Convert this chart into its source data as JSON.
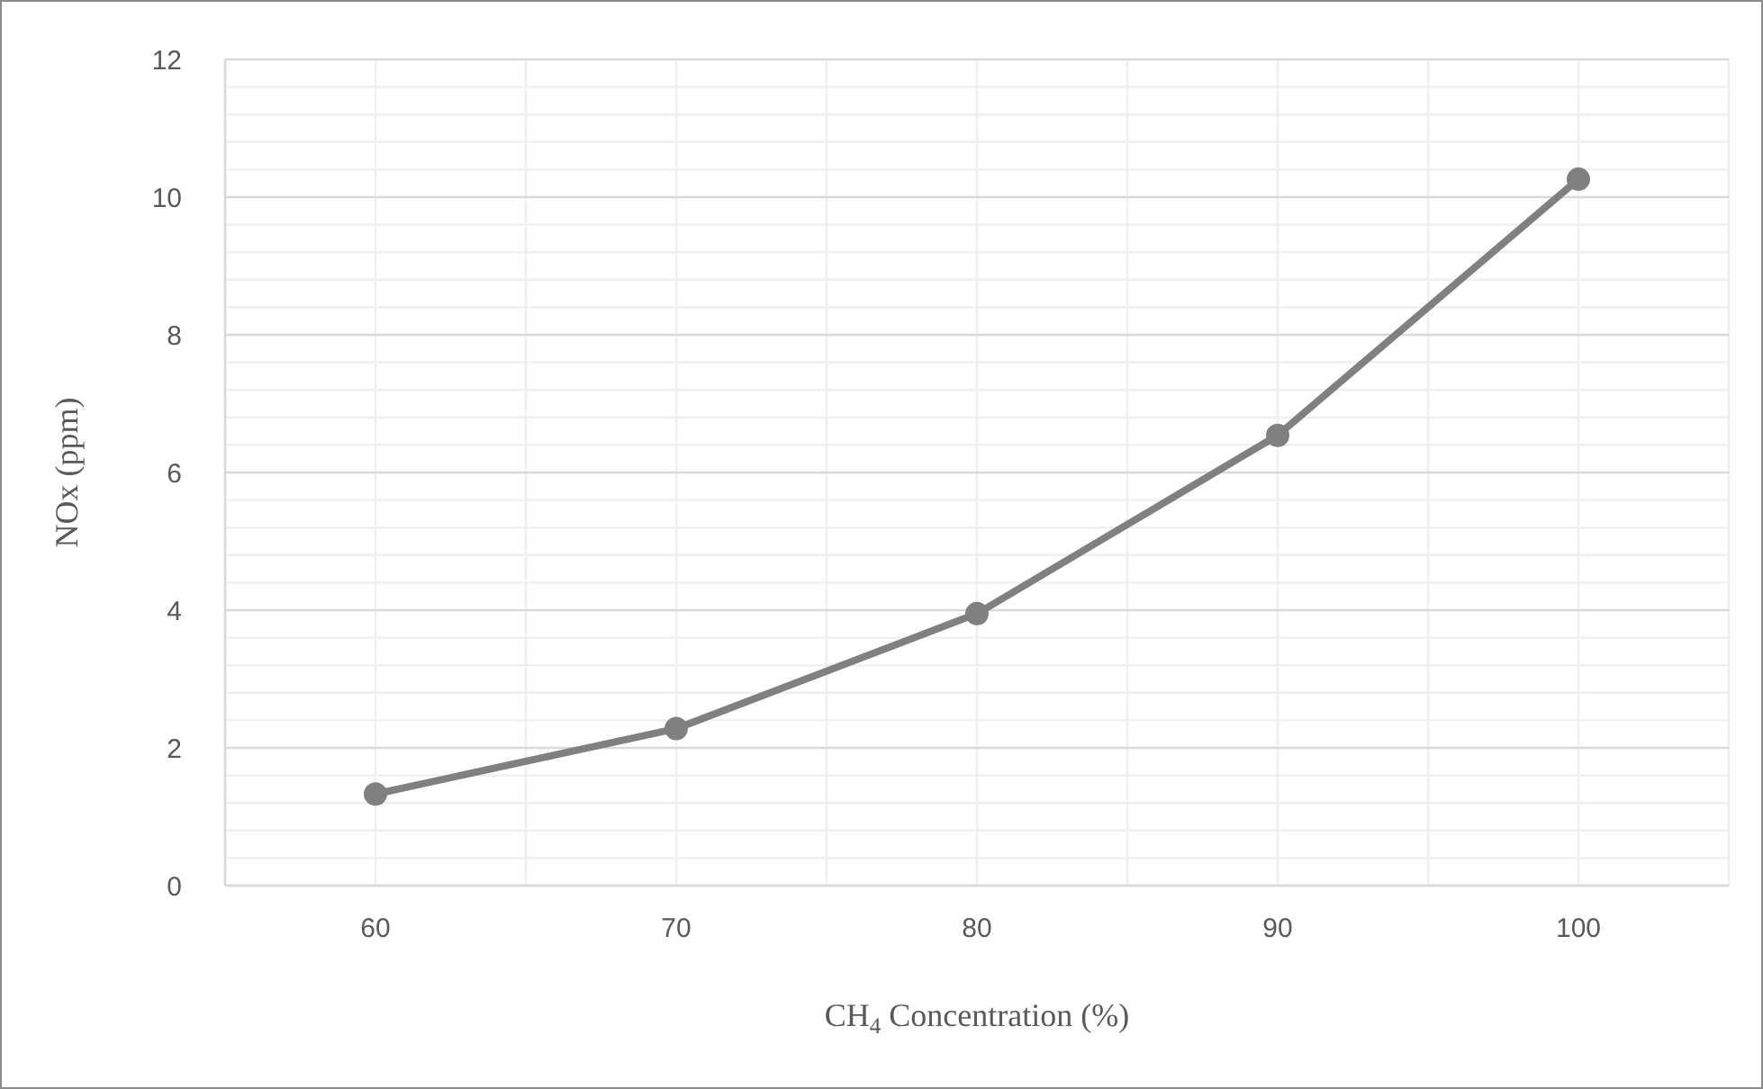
{
  "chart_data": {
    "type": "line",
    "xlabel": "CH$_{4}$ Concentration (%)",
    "ylabel": "NOx (ppm)",
    "x": [
      60,
      70,
      80,
      90,
      100
    ],
    "series": [
      {
        "color": "#808080",
        "values": [
          1.33,
          2.28,
          3.95,
          6.54,
          10.26
        ]
      }
    ],
    "xlim": [
      55,
      105
    ],
    "xticks": [
      {
        "value": 55,
        "label": null
      },
      60,
      {
        "value": 65,
        "label": null
      },
      70,
      {
        "value": 75,
        "label": null
      },
      80,
      {
        "value": 85,
        "label": null
      },
      90,
      {
        "value": 95,
        "label": null
      },
      100,
      {
        "value": 105,
        "label": null
      }
    ],
    "ylim": [
      0,
      12
    ],
    "yticks": [
      0,
      {
        "value": 0.4,
        "label": null
      },
      {
        "value": 0.8,
        "label": null
      },
      {
        "value": 1.2,
        "label": null
      },
      {
        "value": 1.6,
        "label": null
      },
      2,
      {
        "value": 2.4,
        "label": null
      },
      {
        "value": 2.8,
        "label": null
      },
      {
        "value": 3.2,
        "label": null
      },
      {
        "value": 3.6,
        "label": null
      },
      4,
      {
        "value": 4.4,
        "label": null
      },
      {
        "value": 4.8,
        "label": null
      },
      {
        "value": 5.2,
        "label": null
      },
      {
        "value": 5.6,
        "label": null
      },
      6,
      {
        "value": 6.4,
        "label": null
      },
      {
        "value": 6.8,
        "label": null
      },
      {
        "value": 7.2,
        "label": null
      },
      {
        "value": 7.6,
        "label": null
      },
      8,
      {
        "value": 8.4,
        "label": null
      },
      {
        "value": 8.8,
        "label": null
      },
      {
        "value": 9.2,
        "label": null
      },
      {
        "value": 9.6,
        "label": null
      },
      10,
      {
        "value": 10.4,
        "label": null
      },
      {
        "value": 10.8,
        "label": null
      },
      {
        "value": 11.2,
        "label": null
      },
      {
        "value": 11.6,
        "label": null
      },
      12
    ],
    "grid": true,
    "marker": "circle",
    "line_style": "solid",
    "legend": false
  }
}
